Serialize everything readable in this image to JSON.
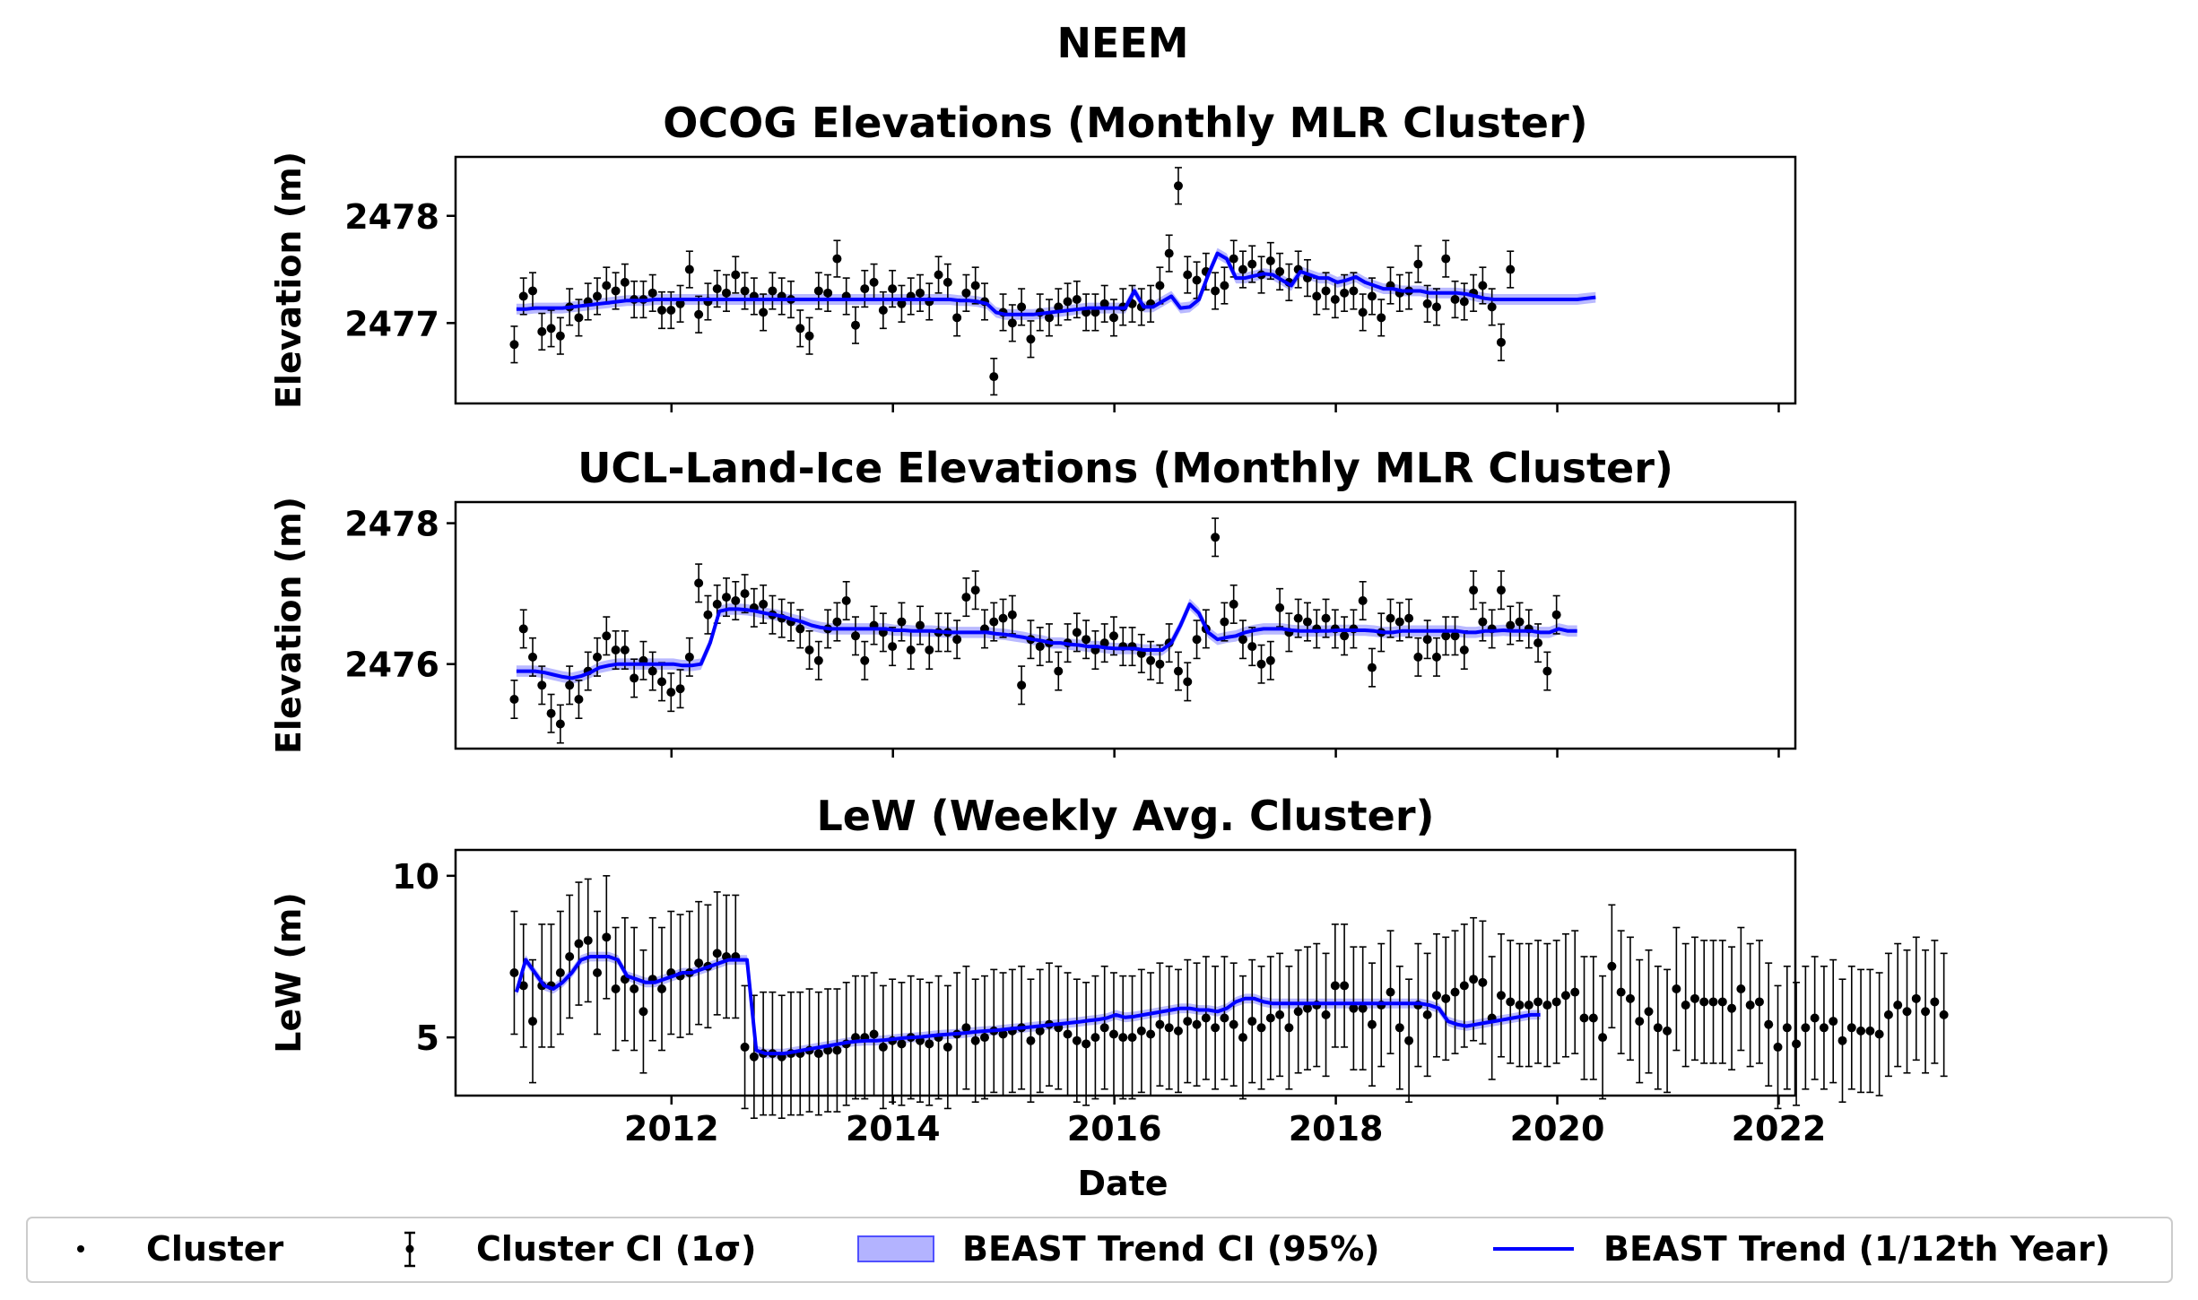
{
  "figure": {
    "suptitle": "NEEM",
    "xlabel": "Date",
    "x_ticks": [
      2012,
      2014,
      2016,
      2018,
      2020,
      2022
    ],
    "x_range": [
      2010.05,
      2022.15
    ]
  },
  "legend": {
    "placement": "bottom",
    "items": [
      {
        "label": "Cluster",
        "kind": "dot"
      },
      {
        "label": "Cluster CI (1σ)",
        "kind": "errorbar"
      },
      {
        "label": "BEAST Trend CI (95%)",
        "kind": "band"
      },
      {
        "label": "BEAST Trend (1/12th Year)",
        "kind": "line"
      }
    ]
  },
  "colors": {
    "cluster": "#000000",
    "trend": "#0000ff",
    "trend_ci": "#8080ff"
  },
  "chart_data": [
    {
      "type": "scatter",
      "title": "OCOG Elevations (Monthly MLR Cluster)",
      "xlabel": "",
      "ylabel": "Elevation (m)",
      "ylim": [
        2476.25,
        2478.55
      ],
      "y_ticks": [
        2477,
        2478
      ],
      "x_step": 0.0833,
      "grid": false,
      "cluster": {
        "x_start": 2010.58,
        "values": [
          2476.8,
          2477.25,
          2477.3,
          2476.92,
          2476.95,
          2476.88,
          2477.15,
          2477.05,
          2477.2,
          2477.25,
          2477.35,
          2477.3,
          2477.38,
          2477.22,
          2477.22,
          2477.28,
          2477.12,
          2477.12,
          2477.18,
          2477.5,
          2477.08,
          2477.2,
          2477.32,
          2477.28,
          2477.45,
          2477.3,
          2477.25,
          2477.1,
          2477.3,
          2477.25,
          2477.22,
          2476.95,
          2476.88,
          2477.3,
          2477.28,
          2477.6,
          2477.25,
          2476.98,
          2477.32,
          2477.38,
          2477.12,
          2477.32,
          2477.18,
          2477.25,
          2477.28,
          2477.2,
          2477.45,
          2477.38,
          2477.05,
          2477.28,
          2477.35,
          2477.2,
          2476.5,
          2477.1,
          2477.0,
          2477.15,
          2476.85,
          2477.1,
          2477.05,
          2477.15,
          2477.2,
          2477.22,
          2477.1,
          2477.1,
          2477.18,
          2477.05,
          2477.15,
          2477.18,
          2477.15,
          2477.18,
          2477.35,
          2477.65,
          2478.28,
          2477.45,
          2477.4,
          2477.48,
          2477.3,
          2477.35,
          2477.6,
          2477.5,
          2477.55,
          2477.45,
          2477.58,
          2477.48,
          2477.38,
          2477.5,
          2477.42,
          2477.25,
          2477.3,
          2477.22,
          2477.28,
          2477.3,
          2477.1,
          2477.25,
          2477.05,
          2477.35,
          2477.28,
          2477.3,
          2477.55,
          2477.18,
          2477.15,
          2477.6,
          2477.22,
          2477.2,
          2477.28,
          2477.35,
          2477.15,
          2476.82,
          2477.5
        ],
        "ci": 0.17
      },
      "trend": {
        "x_start": 2010.6,
        "values": [
          2477.13,
          2477.13,
          2477.14,
          2477.14,
          2477.14,
          2477.14,
          2477.15,
          2477.16,
          2477.17,
          2477.18,
          2477.19,
          2477.2,
          2477.21,
          2477.21,
          2477.21,
          2477.22,
          2477.22,
          2477.22,
          2477.22,
          2477.22,
          2477.22,
          2477.22,
          2477.22,
          2477.22,
          2477.22,
          2477.22,
          2477.22,
          2477.22,
          2477.22,
          2477.22,
          2477.22,
          2477.22,
          2477.22,
          2477.22,
          2477.22,
          2477.22,
          2477.22,
          2477.22,
          2477.22,
          2477.22,
          2477.22,
          2477.22,
          2477.22,
          2477.22,
          2477.22,
          2477.22,
          2477.22,
          2477.22,
          2477.21,
          2477.21,
          2477.2,
          2477.18,
          2477.1,
          2477.08,
          2477.08,
          2477.08,
          2477.08,
          2477.09,
          2477.1,
          2477.11,
          2477.12,
          2477.13,
          2477.14,
          2477.14,
          2477.14,
          2477.14,
          2477.14,
          2477.3,
          2477.15,
          2477.15,
          2477.2,
          2477.25,
          2477.14,
          2477.15,
          2477.22,
          2477.45,
          2477.65,
          2477.6,
          2477.42,
          2477.42,
          2477.44,
          2477.46,
          2477.45,
          2477.4,
          2477.35,
          2477.48,
          2477.45,
          2477.42,
          2477.42,
          2477.38,
          2477.4,
          2477.43,
          2477.38,
          2477.35,
          2477.32,
          2477.32,
          2477.3,
          2477.3,
          2477.3,
          2477.28,
          2477.28,
          2477.28,
          2477.28,
          2477.27,
          2477.25,
          2477.23,
          2477.22,
          2477.22,
          2477.22,
          2477.22,
          2477.22,
          2477.22,
          2477.22,
          2477.22,
          2477.22,
          2477.22,
          2477.23,
          2477.24
        ],
        "ci": 0.05
      }
    },
    {
      "type": "scatter",
      "title": "UCL-Land-Ice Elevations (Monthly MLR Cluster)",
      "xlabel": "",
      "ylabel": "Elevation (m)",
      "ylim": [
        2474.8,
        2478.3
      ],
      "y_ticks": [
        2476,
        2478
      ],
      "x_step": 0.0833,
      "grid": false,
      "cluster": {
        "x_start": 2010.58,
        "values": [
          2475.5,
          2476.5,
          2476.1,
          2475.7,
          2475.3,
          2475.15,
          2475.7,
          2475.5,
          2475.9,
          2476.1,
          2476.4,
          2476.2,
          2476.2,
          2475.8,
          2476.05,
          2475.9,
          2475.75,
          2475.6,
          2475.65,
          2476.1,
          2477.15,
          2476.7,
          2476.85,
          2476.95,
          2476.9,
          2477.0,
          2476.8,
          2476.85,
          2476.7,
          2476.65,
          2476.6,
          2476.5,
          2476.2,
          2476.05,
          2476.5,
          2476.6,
          2476.9,
          2476.4,
          2476.05,
          2476.55,
          2476.45,
          2476.25,
          2476.6,
          2476.2,
          2476.55,
          2476.2,
          2476.45,
          2476.45,
          2476.35,
          2476.95,
          2477.05,
          2476.5,
          2476.6,
          2476.65,
          2476.7,
          2475.7,
          2476.35,
          2476.25,
          2476.3,
          2475.9,
          2476.3,
          2476.45,
          2476.35,
          2476.2,
          2476.3,
          2476.4,
          2476.25,
          2476.25,
          2476.15,
          2476.05,
          2476.0,
          2476.3,
          2475.9,
          2475.75,
          2476.35,
          2476.5,
          2477.8,
          2476.6,
          2476.85,
          2476.35,
          2476.25,
          2476.0,
          2476.05,
          2476.8,
          2476.45,
          2476.65,
          2476.6,
          2476.5,
          2476.65,
          2476.5,
          2476.4,
          2476.5,
          2476.9,
          2475.95,
          2476.45,
          2476.65,
          2476.6,
          2476.65,
          2476.1,
          2476.35,
          2476.1,
          2476.4,
          2476.4,
          2476.2,
          2477.05,
          2476.6,
          2476.5,
          2477.05,
          2476.55,
          2476.6,
          2476.5,
          2476.3,
          2475.9,
          2476.7
        ],
        "ci": 0.27
      },
      "trend": {
        "x_start": 2010.6,
        "values": [
          2475.9,
          2475.9,
          2475.9,
          2475.88,
          2475.85,
          2475.82,
          2475.8,
          2475.83,
          2475.88,
          2475.95,
          2475.98,
          2476.0,
          2476.0,
          2476.0,
          2476.0,
          2476.0,
          2476.0,
          2476.0,
          2475.98,
          2475.98,
          2476.0,
          2476.3,
          2476.75,
          2476.78,
          2476.78,
          2476.77,
          2476.75,
          2476.72,
          2476.7,
          2476.67,
          2476.63,
          2476.6,
          2476.55,
          2476.52,
          2476.5,
          2476.5,
          2476.5,
          2476.5,
          2476.5,
          2476.5,
          2476.5,
          2476.48,
          2476.48,
          2476.47,
          2476.47,
          2476.47,
          2476.46,
          2476.45,
          2476.45,
          2476.45,
          2476.45,
          2476.45,
          2476.43,
          2476.42,
          2476.4,
          2476.38,
          2476.35,
          2476.33,
          2476.3,
          2476.3,
          2476.28,
          2476.27,
          2476.25,
          2476.25,
          2476.23,
          2476.22,
          2476.22,
          2476.22,
          2476.2,
          2476.2,
          2476.2,
          2476.3,
          2476.55,
          2476.85,
          2476.72,
          2476.45,
          2476.35,
          2476.38,
          2476.4,
          2476.45,
          2476.48,
          2476.5,
          2476.5,
          2476.5,
          2476.48,
          2476.47,
          2476.47,
          2476.47,
          2476.47,
          2476.48,
          2476.48,
          2476.48,
          2476.48,
          2476.47,
          2476.45,
          2476.45,
          2476.47,
          2476.47,
          2476.47,
          2476.47,
          2476.47,
          2476.47,
          2476.47,
          2476.45,
          2476.45,
          2476.47,
          2476.47,
          2476.48,
          2476.47,
          2476.47,
          2476.47,
          2476.45,
          2476.45,
          2476.5,
          2476.47,
          2476.47
        ],
        "ci": 0.08
      }
    },
    {
      "type": "scatter",
      "title": "LeW (Weekly Avg. Cluster)",
      "xlabel": "Date",
      "ylabel": "LeW (m)",
      "ylim": [
        3.2,
        10.8
      ],
      "y_ticks": [
        5,
        10
      ],
      "x_step": 0.0833,
      "grid": false,
      "cluster": {
        "x_start": 2010.58,
        "values": [
          7.0,
          6.6,
          5.5,
          6.6,
          6.6,
          7.0,
          7.5,
          7.9,
          8.0,
          7.0,
          8.1,
          6.5,
          6.8,
          6.5,
          5.8,
          6.8,
          6.5,
          7.0,
          6.9,
          7.0,
          7.3,
          7.2,
          7.6,
          7.5,
          7.5,
          4.7,
          4.4,
          4.5,
          4.5,
          4.4,
          4.5,
          4.5,
          4.6,
          4.5,
          4.6,
          4.6,
          4.8,
          5.0,
          5.0,
          5.1,
          4.7,
          4.9,
          4.8,
          5.0,
          4.9,
          4.8,
          5.0,
          4.7,
          5.1,
          5.3,
          4.9,
          5.0,
          5.2,
          5.1,
          5.2,
          5.3,
          4.9,
          5.2,
          5.4,
          5.3,
          5.1,
          4.9,
          4.8,
          5.0,
          5.3,
          5.1,
          5.0,
          5.0,
          5.2,
          5.1,
          5.4,
          5.3,
          5.2,
          5.5,
          5.4,
          5.6,
          5.3,
          5.6,
          5.4,
          5.0,
          5.5,
          5.3,
          5.6,
          5.7,
          5.3,
          5.8,
          5.9,
          6.0,
          5.7,
          6.6,
          6.6,
          5.9,
          5.9,
          5.4,
          6.0,
          6.4,
          5.3,
          4.9,
          6.0,
          5.7,
          6.3,
          6.2,
          6.4,
          6.6,
          6.8,
          6.7,
          5.6,
          6.3,
          6.1,
          6.0,
          6.0,
          6.1,
          6.0,
          6.1,
          6.3,
          6.4,
          5.6,
          5.6,
          5.0,
          7.2,
          6.4,
          6.2,
          5.5,
          5.8,
          5.3,
          5.2,
          6.5,
          6.0,
          6.2,
          6.1,
          6.1,
          6.1,
          5.9,
          6.5,
          6.0,
          6.1,
          5.4,
          4.7,
          5.3,
          4.8,
          5.3,
          5.6,
          5.3,
          5.5,
          4.9,
          5.3,
          5.2,
          5.2,
          5.1,
          5.7,
          6.0,
          5.8,
          6.2,
          5.8,
          6.1,
          5.7
        ],
        "ci": 1.9
      },
      "trend": {
        "x_start": 2010.6,
        "values": [
          6.4,
          7.4,
          7.0,
          6.6,
          6.5,
          6.7,
          7.0,
          7.4,
          7.5,
          7.5,
          7.5,
          7.4,
          6.9,
          6.8,
          6.7,
          6.7,
          6.8,
          6.9,
          7.0,
          7.0,
          7.1,
          7.2,
          7.3,
          7.4,
          7.4,
          7.4,
          4.6,
          4.5,
          4.5,
          4.5,
          4.55,
          4.6,
          4.65,
          4.7,
          4.75,
          4.8,
          4.85,
          4.88,
          4.9,
          4.9,
          4.92,
          4.95,
          4.98,
          5.0,
          5.02,
          5.05,
          5.08,
          5.1,
          5.12,
          5.15,
          5.18,
          5.2,
          5.22,
          5.25,
          5.28,
          5.3,
          5.33,
          5.36,
          5.39,
          5.42,
          5.45,
          5.48,
          5.52,
          5.55,
          5.6,
          5.7,
          5.62,
          5.65,
          5.7,
          5.75,
          5.8,
          5.85,
          5.9,
          5.9,
          5.85,
          5.85,
          5.8,
          5.9,
          6.1,
          6.2,
          6.2,
          6.1,
          6.05,
          6.05,
          6.05,
          6.05,
          6.05,
          6.05,
          6.05,
          6.05,
          6.05,
          6.05,
          6.05,
          6.05,
          6.05,
          6.05,
          6.05,
          6.05,
          6.05,
          6.0,
          5.9,
          5.5,
          5.4,
          5.35,
          5.4,
          5.45,
          5.5,
          5.55,
          5.6,
          5.65,
          5.7,
          5.7
        ],
        "ci": 0.15
      }
    }
  ]
}
